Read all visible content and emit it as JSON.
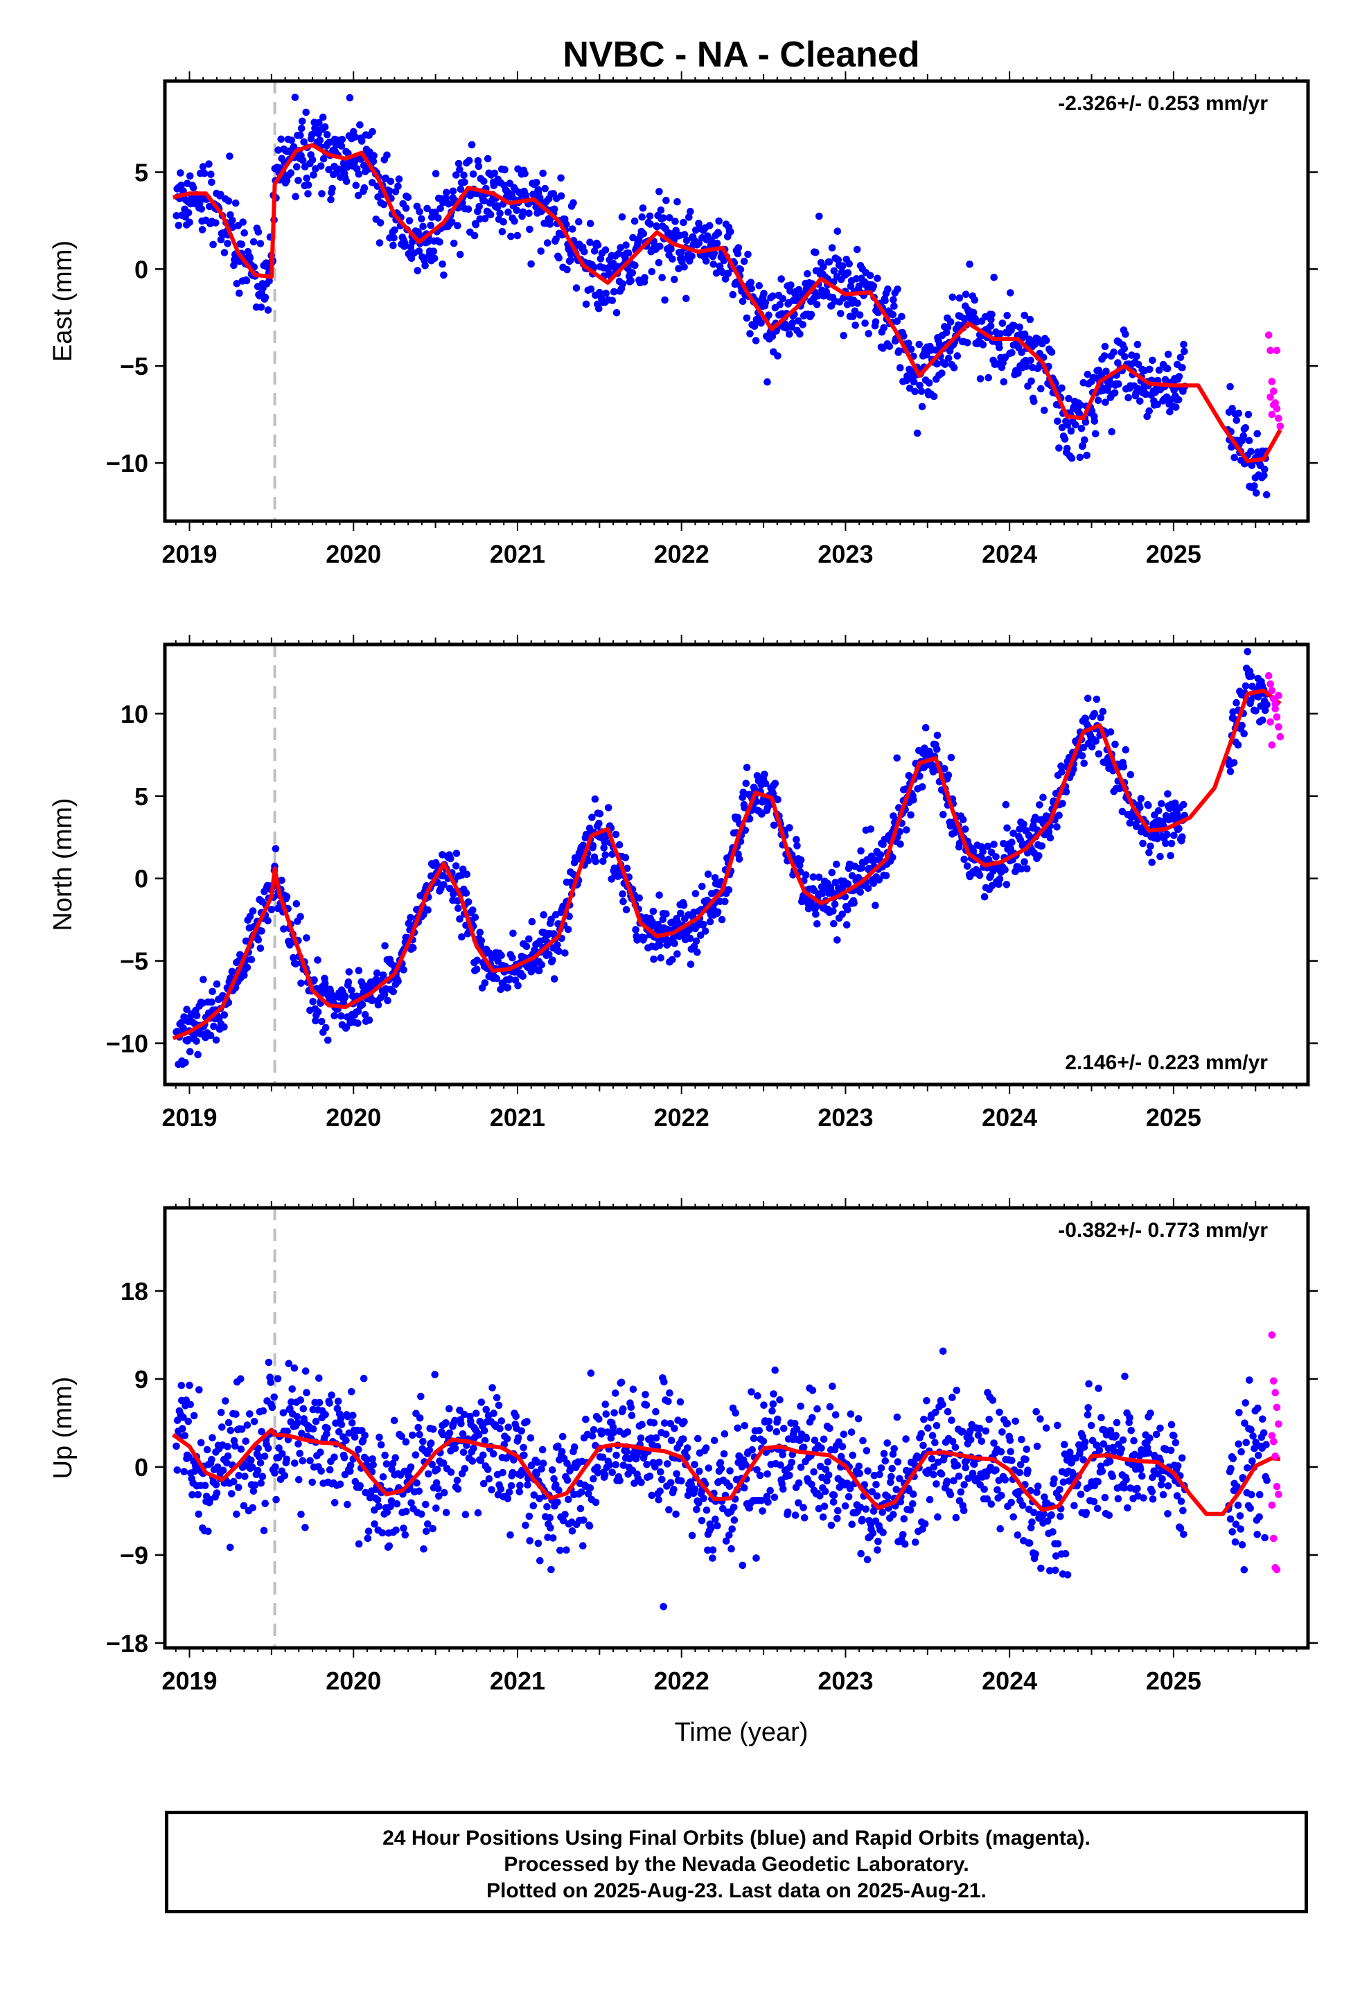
{
  "chart_data": {
    "title": "NVBC  - NA - Cleaned",
    "xlabel": "Time (year)",
    "type": "scatter",
    "xlim": [
      2018.85,
      2025.82
    ],
    "event_line_year": 2019.52,
    "colors": {
      "final": "#0000ff",
      "rapid": "#ff00ff",
      "fit": "#ff0000",
      "event": "#c0c0c0"
    },
    "panels": [
      {
        "id": "east",
        "ylabel": "East (mm)",
        "ylim": [
          -13,
          9.7
        ],
        "yticks": [
          5,
          0,
          -5,
          -10
        ],
        "ytick_labels": [
          "5",
          "0",
          "−5",
          "−10"
        ],
        "rate_label": "-2.326+/- 0.253 mm/yr",
        "rate_position": "top-right",
        "xticks": [
          2019,
          2020,
          2021,
          2022,
          2023,
          2024,
          2025
        ],
        "xtick_labels": [
          "2019",
          "2020",
          "2021",
          "2022",
          "2023",
          "2024",
          "2025"
        ],
        "trend": -2.326,
        "fit_curve": {
          "x": [
            2018.9,
            2019.0,
            2019.1,
            2019.2,
            2019.3,
            2019.4,
            2019.5,
            2019.52,
            2019.55,
            2019.65,
            2019.75,
            2019.85,
            2019.95,
            2020.05,
            2020.15,
            2020.25,
            2020.4,
            2020.55,
            2020.7,
            2020.85,
            2020.95,
            2021.1,
            2021.25,
            2021.4,
            2021.55,
            2021.7,
            2021.85,
            2021.95,
            2022.1,
            2022.25,
            2022.4,
            2022.55,
            2022.7,
            2022.85,
            2023.0,
            2023.15,
            2023.3,
            2023.45,
            2023.6,
            2023.75,
            2023.9,
            2024.05,
            2024.2,
            2024.35,
            2024.45,
            2024.55,
            2024.7,
            2024.85,
            2025.0,
            2025.15,
            2025.3,
            2025.45,
            2025.55,
            2025.65
          ],
          "y": [
            3.7,
            3.9,
            3.9,
            2.8,
            0.8,
            -0.3,
            -0.4,
            4.4,
            4.8,
            6.1,
            6.4,
            5.9,
            5.7,
            6.0,
            4.7,
            2.8,
            1.4,
            2.4,
            4.2,
            3.9,
            3.4,
            3.6,
            2.5,
            0.2,
            -0.7,
            0.6,
            1.9,
            1.3,
            0.9,
            1.1,
            -1.2,
            -3.1,
            -2.0,
            -0.5,
            -1.3,
            -1.2,
            -3.1,
            -5.5,
            -4.1,
            -2.8,
            -3.6,
            -3.6,
            -4.8,
            -7.6,
            -7.7,
            -5.8,
            -5.0,
            -5.9,
            -6.0,
            -6.0,
            -8.1,
            -9.9,
            -9.8,
            -8.3
          ]
        },
        "rapid_points": {
          "x": [
            2025.58,
            2025.59,
            2025.6,
            2025.61,
            2025.62,
            2025.63,
            2025.64,
            2025.65,
            2025.59,
            2025.61,
            2025.63,
            2025.6
          ],
          "y": [
            -3.4,
            -4.2,
            -5.8,
            -6.3,
            -6.9,
            -7.2,
            -7.7,
            -8.1,
            -6.6,
            -7.0,
            -4.2,
            -7.5
          ]
        }
      },
      {
        "id": "north",
        "ylabel": "North (mm)",
        "ylim": [
          -12.5,
          14.2
        ],
        "yticks": [
          10,
          5,
          0,
          -5,
          -10
        ],
        "ytick_labels": [
          "10",
          "5",
          "0",
          "−5",
          "−10"
        ],
        "rate_label": "2.146+/- 0.223 mm/yr",
        "rate_position": "bottom-right",
        "xticks": [
          2019,
          2020,
          2021,
          2022,
          2023,
          2024,
          2025
        ],
        "xtick_labels": [
          "2019",
          "2020",
          "2021",
          "2022",
          "2023",
          "2024",
          "2025"
        ],
        "trend": 2.146,
        "fit_curve": {
          "x": [
            2018.9,
            2019.0,
            2019.1,
            2019.2,
            2019.3,
            2019.4,
            2019.5,
            2019.52,
            2019.55,
            2019.65,
            2019.75,
            2019.85,
            2019.95,
            2020.1,
            2020.25,
            2020.35,
            2020.45,
            2020.55,
            2020.65,
            2020.75,
            2020.85,
            2020.95,
            2021.1,
            2021.25,
            2021.35,
            2021.45,
            2021.55,
            2021.65,
            2021.75,
            2021.85,
            2021.95,
            2022.1,
            2022.25,
            2022.35,
            2022.45,
            2022.55,
            2022.65,
            2022.75,
            2022.85,
            2022.95,
            2023.1,
            2023.25,
            2023.35,
            2023.45,
            2023.55,
            2023.65,
            2023.75,
            2023.85,
            2023.95,
            2024.1,
            2024.25,
            2024.35,
            2024.45,
            2024.55,
            2024.65,
            2024.75,
            2024.85,
            2024.95,
            2025.1,
            2025.25,
            2025.35,
            2025.45,
            2025.55,
            2025.65
          ],
          "y": [
            -9.7,
            -9.3,
            -8.7,
            -7.8,
            -5.6,
            -3.2,
            -1.1,
            0.6,
            -1.0,
            -3.9,
            -6.8,
            -7.7,
            -7.8,
            -7.0,
            -5.8,
            -3.6,
            -0.8,
            0.9,
            -1.0,
            -4.1,
            -5.6,
            -5.5,
            -4.8,
            -3.5,
            -0.3,
            2.6,
            3.0,
            0.3,
            -2.7,
            -3.5,
            -3.3,
            -2.4,
            -0.7,
            2.7,
            5.2,
            4.9,
            1.5,
            -0.8,
            -1.5,
            -1.1,
            -0.2,
            1.2,
            4.3,
            7.0,
            7.3,
            4.2,
            1.5,
            0.8,
            1.0,
            1.8,
            3.5,
            6.3,
            8.9,
            9.3,
            6.7,
            4.4,
            2.9,
            3.0,
            3.7,
            5.5,
            8.3,
            11.2,
            11.4,
            10.6
          ]
        },
        "rapid_points": {
          "x": [
            2025.58,
            2025.59,
            2025.6,
            2025.61,
            2025.62,
            2025.63,
            2025.64,
            2025.65,
            2025.6,
            2025.62,
            2025.64,
            2025.59
          ],
          "y": [
            12.3,
            11.8,
            11.4,
            10.9,
            10.3,
            9.8,
            9.2,
            8.6,
            8.1,
            10.6,
            11.1,
            9.5
          ]
        }
      },
      {
        "id": "up",
        "ylabel": "Up (mm)",
        "ylim": [
          -18.5,
          26.5
        ],
        "yticks": [
          18,
          9,
          0,
          -9,
          -18
        ],
        "ytick_labels": [
          "18",
          "9",
          "0",
          "−9",
          "−18"
        ],
        "rate_label": "-0.382+/- 0.773 mm/yr",
        "rate_position": "top-right",
        "xticks": [
          2019,
          2020,
          2021,
          2022,
          2023,
          2024,
          2025
        ],
        "xtick_labels": [
          "2019",
          "2020",
          "2021",
          "2022",
          "2023",
          "2024",
          "2025"
        ],
        "trend": -0.382,
        "fit_curve": {
          "x": [
            2018.9,
            2019.0,
            2019.1,
            2019.2,
            2019.3,
            2019.4,
            2019.5,
            2019.52,
            2019.6,
            2019.7,
            2019.8,
            2019.9,
            2020.0,
            2020.1,
            2020.2,
            2020.3,
            2020.4,
            2020.5,
            2020.6,
            2020.7,
            2020.8,
            2020.9,
            2021.0,
            2021.1,
            2021.2,
            2021.3,
            2021.4,
            2021.5,
            2021.6,
            2021.7,
            2021.8,
            2021.9,
            2022.0,
            2022.1,
            2022.2,
            2022.3,
            2022.4,
            2022.5,
            2022.6,
            2022.7,
            2022.8,
            2022.9,
            2023.0,
            2023.1,
            2023.2,
            2023.3,
            2023.4,
            2023.5,
            2023.6,
            2023.7,
            2023.8,
            2023.9,
            2024.0,
            2024.1,
            2024.2,
            2024.3,
            2024.4,
            2024.5,
            2024.6,
            2024.7,
            2024.8,
            2024.9,
            2025.0,
            2025.1,
            2025.2,
            2025.3,
            2025.4,
            2025.5,
            2025.6,
            2025.65
          ],
          "y": [
            3.3,
            2.1,
            -0.6,
            -1.3,
            0.3,
            2.3,
            3.8,
            3.3,
            3.2,
            2.8,
            2.5,
            2.4,
            1.4,
            -0.9,
            -2.8,
            -2.4,
            -0.6,
            1.5,
            2.8,
            2.6,
            2.2,
            2.0,
            1.1,
            -1.3,
            -3.2,
            -2.7,
            -0.3,
            2.0,
            2.3,
            2.1,
            1.8,
            1.6,
            1.0,
            -1.3,
            -3.3,
            -3.2,
            -0.6,
            1.9,
            2.1,
            1.6,
            1.4,
            1.2,
            0.1,
            -2.3,
            -4.2,
            -3.6,
            -1.0,
            1.4,
            1.5,
            1.2,
            0.9,
            0.8,
            -0.3,
            -2.6,
            -4.4,
            -4.0,
            -1.5,
            1.1,
            1.2,
            0.8,
            0.6,
            0.5,
            -0.6,
            -2.8,
            -4.8,
            -4.8,
            -2.6,
            0.1,
            0.9,
            0.8
          ]
        },
        "rapid_points": {
          "x": [
            2025.6,
            2025.61,
            2025.62,
            2025.63,
            2025.64,
            2025.6,
            2025.61,
            2025.62,
            2025.63,
            2025.64,
            2025.6,
            2025.61,
            2025.62,
            2025.63
          ],
          "y": [
            13.5,
            8.8,
            7.6,
            6.1,
            4.4,
            3.2,
            2.6,
            1.1,
            -2.0,
            -2.8,
            -3.9,
            -7.3,
            -10.3,
            -10.5
          ]
        }
      }
    ],
    "caption_lines": [
      "24 Hour Positions Using Final Orbits (blue) and Rapid Orbits (magenta).",
      "Processed by the Nevada Geodetic Laboratory.",
      "Plotted on 2025-Aug-23. Last data on 2025-Aug-21."
    ]
  }
}
